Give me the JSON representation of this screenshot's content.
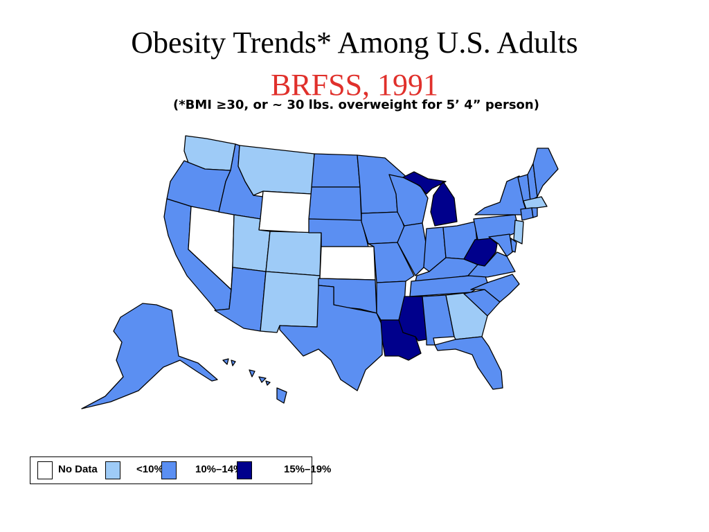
{
  "slide": {
    "title": "Obesity Trends* Among U.S. Adults",
    "subtitle": "BRFSS, 1991",
    "footnote": "(*BMI ≥30, or ~ 30 lbs. overweight for 5’ 4” person)"
  },
  "legend": {
    "items": [
      {
        "label": "No Data",
        "color": "#ffffff"
      },
      {
        "label": "<10%",
        "color": "#9ecbf7"
      },
      {
        "label": "10%–14%",
        "color": "#5b8ff2"
      },
      {
        "label": "15%–19%",
        "color": "#00008c"
      }
    ]
  },
  "colors": {
    "nodata": "#ffffff",
    "lt10": "#9ecbf7",
    "p10_14": "#5b8ff2",
    "p15_19": "#00008c"
  },
  "chart_data": {
    "type": "choropleth-map",
    "year": 1991,
    "categories": [
      "No Data",
      "<10%",
      "10%–14%",
      "15%–19%"
    ],
    "states": {
      "WA": "<10%",
      "OR": "10%–14%",
      "CA": "10%–14%",
      "NV": "No Data",
      "ID": "10%–14%",
      "MT": "<10%",
      "WY": "No Data",
      "UT": "<10%",
      "CO": "<10%",
      "AZ": "10%–14%",
      "NM": "<10%",
      "ND": "10%–14%",
      "SD": "10%–14%",
      "NE": "10%–14%",
      "KS": "No Data",
      "OK": "10%–14%",
      "TX": "10%–14%",
      "MN": "10%–14%",
      "IA": "10%–14%",
      "MO": "10%–14%",
      "AR": "10%–14%",
      "LA": "15%–19%",
      "WI": "10%–14%",
      "IL": "10%–14%",
      "MI": "15%–19%",
      "IN": "10%–14%",
      "OH": "10%–14%",
      "KY": "10%–14%",
      "TN": "10%–14%",
      "MS": "15%–19%",
      "AL": "10%–14%",
      "GA": "<10%",
      "FL": "10%–14%",
      "SC": "10%–14%",
      "NC": "10%–14%",
      "VA": "10%–14%",
      "WV": "15%–19%",
      "PA": "10%–14%",
      "NY": "10%–14%",
      "VT": "10%–14%",
      "NH": "10%–14%",
      "ME": "10%–14%",
      "MA": "<10%",
      "CT": "10%–14%",
      "RI": "10%–14%",
      "NJ": "<10%",
      "DE": "10%–14%",
      "MD": "10%–14%",
      "AK": "10%–14%",
      "HI": "10%–14%"
    }
  }
}
